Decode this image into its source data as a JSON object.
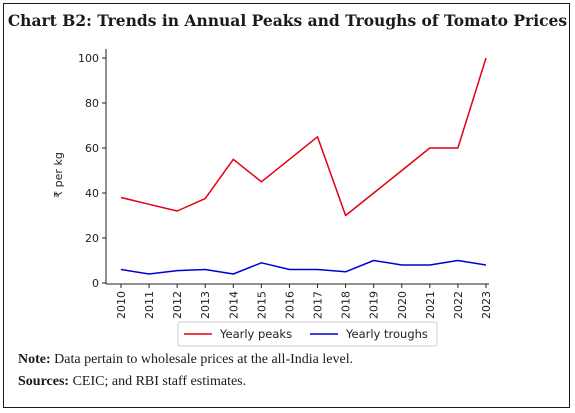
{
  "chart_data": {
    "type": "line",
    "title": "Chart B2: Trends in Annual Peaks and Troughs of Tomato Prices",
    "xlabel": "",
    "ylabel": "₹ per kg",
    "x": [
      "2010",
      "2011",
      "2012",
      "2013",
      "2014",
      "2015",
      "2016",
      "2017",
      "2018",
      "2019",
      "2020",
      "2021",
      "2022",
      "2023"
    ],
    "ylim": [
      0,
      100
    ],
    "yticks": [
      0,
      20,
      40,
      60,
      80,
      100
    ],
    "grid": false,
    "legend_position": "bottom",
    "series": [
      {
        "name": "Yearly peaks",
        "color": "#e3000f",
        "values": [
          38,
          35,
          32,
          37.5,
          55,
          45,
          55,
          65,
          30,
          40,
          50,
          60,
          60,
          100
        ]
      },
      {
        "name": "Yearly troughs",
        "color": "#0000d6",
        "values": [
          6,
          4,
          5.5,
          6,
          4,
          9,
          6,
          6,
          5,
          10,
          8,
          8,
          10,
          8
        ]
      }
    ]
  },
  "footer": {
    "note_label": "Note:",
    "note_text": " Data pertain to wholesale prices at the all-India level.",
    "sources_label": "Sources:",
    "sources_text": " CEIC; and RBI staff estimates."
  }
}
